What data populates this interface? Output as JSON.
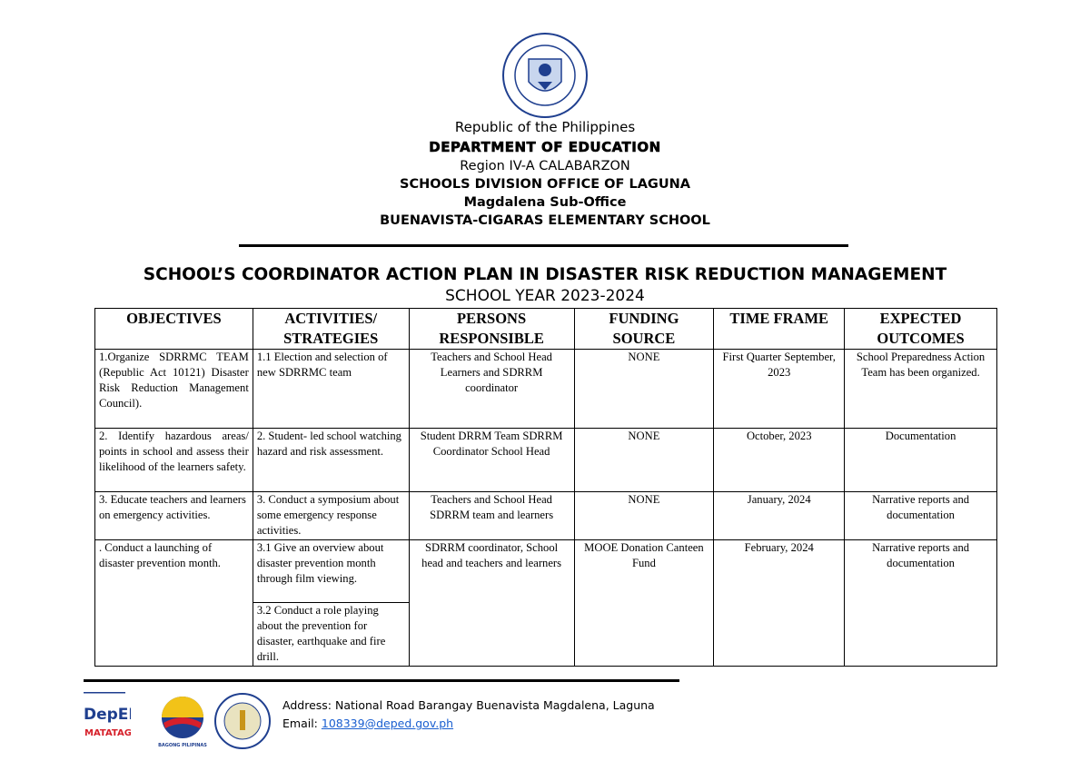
{
  "header": {
    "seal_text": "KAGAWARAN NG EDUKASYON · REPUBLIKA NG PILIPINAS",
    "republic": "Republic of the Philippines",
    "department": "DEPARTMENT OF EDUCATION",
    "region": "Region IV-A CALABARZON",
    "division": "SCHOOLS DIVISION OFFICE OF LAGUNA",
    "sub_office": "Magdalena Sub-Office",
    "school": "BUENAVISTA-CIGARAS ELEMENTARY SCHOOL"
  },
  "title": "SCHOOL’S COORDINATOR ACTION PLAN IN DISASTER RISK REDUCTION MANAGEMENT",
  "school_year": "SCHOOL YEAR 2023-2024",
  "table": {
    "headers": [
      "OBJECTIVES",
      "ACTIVITIES/ STRATEGIES",
      "PERSONS RESPONSIBLE",
      "FUNDING SOURCE",
      "TIME FRAME",
      "EXPECTED OUTCOMES"
    ],
    "rows": [
      {
        "objective": "1.Organize SDRRMC TEAM (Republic Act 10121) Disaster Risk Reduction Management Council).",
        "activity": "1.1 Election and selection of new SDRRMC team",
        "persons": "Teachers and School Head Learners and SDRRM coordinator",
        "funding": "NONE",
        "time": "First Quarter September, 2023",
        "outcome": "School Preparedness Action Team has been organized."
      },
      {
        "objective": "2. Identify hazardous areas/ points in school and assess their likelihood of the learners safety.",
        "activity": "2. Student- led school watching hazard and risk assessment.",
        "persons": "Student DRRM Team SDRRM Coordinator School Head",
        "funding": "NONE",
        "time": "October, 2023",
        "outcome": "Documentation"
      },
      {
        "objective": "3. Educate teachers and learners on emergency activities.",
        "activity": "3. Conduct a symposium about some emergency response activities.",
        "persons": "Teachers and School Head SDRRM team and learners",
        "funding": "NONE",
        "time": "January, 2024",
        "outcome": "Narrative reports and documentation"
      },
      {
        "objective": ". Conduct a launching of disaster prevention month.",
        "activity": "3.1 Give an overview about disaster prevention month through film viewing.",
        "activity2": "3.2 Conduct a role playing about the prevention for disaster, earthquake and fire drill.",
        "persons": "SDRRM coordinator, School head and teachers and learners",
        "funding": "MOOE Donation Canteen Fund",
        "time": "February, 2024",
        "outcome": "Narrative reports and documentation"
      }
    ]
  },
  "footer": {
    "deped_logo": "DepED MATATAG",
    "bagong_logo": "BAGONG PILIPINAS",
    "address": "Address: National Road Barangay Buenavista Magdalena, Laguna",
    "email_label": "Email: ",
    "email": "108339@deped.gov.ph"
  },
  "colors": {
    "link": "#1a5fd0",
    "deped_red": "#d6202a",
    "deped_blue": "#1f3f8f"
  }
}
